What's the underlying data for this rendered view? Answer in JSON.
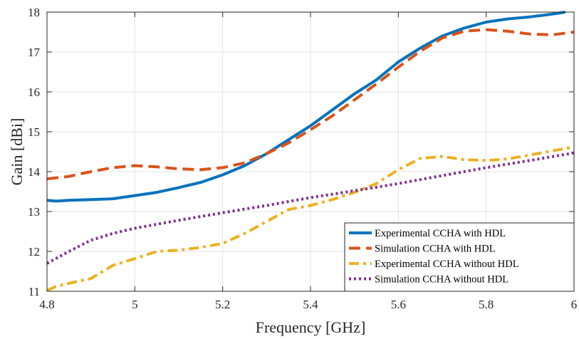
{
  "chart_data": {
    "type": "line",
    "title": "",
    "xlabel": "Frequency [GHz]",
    "ylabel": "Gain [dBi]",
    "xlim": [
      4.8,
      6.0
    ],
    "ylim": [
      11,
      18
    ],
    "x_ticks": [
      4.8,
      5,
      5.2,
      5.4,
      5.6,
      5.8,
      6
    ],
    "x_tick_labels": [
      "4.8",
      "5",
      "5.2",
      "5.4",
      "5.6",
      "5.8",
      "6"
    ],
    "y_ticks": [
      11,
      12,
      13,
      14,
      15,
      16,
      17,
      18
    ],
    "y_tick_labels": [
      "11",
      "12",
      "13",
      "14",
      "15",
      "16",
      "17",
      "18"
    ],
    "grid": true,
    "legend_position": "bottom-right",
    "series": [
      {
        "name": "Experimental CCHA with HDL",
        "style": "solid",
        "color": "#0072BD",
        "x": [
          4.8,
          4.82,
          4.85,
          4.9,
          4.95,
          5.0,
          5.05,
          5.1,
          5.15,
          5.2,
          5.25,
          5.3,
          5.35,
          5.4,
          5.45,
          5.5,
          5.55,
          5.6,
          5.65,
          5.7,
          5.75,
          5.8,
          5.85,
          5.9,
          5.95,
          5.98
        ],
        "y": [
          13.28,
          13.26,
          13.28,
          13.3,
          13.32,
          13.4,
          13.48,
          13.6,
          13.73,
          13.92,
          14.15,
          14.45,
          14.8,
          15.15,
          15.55,
          15.95,
          16.3,
          16.75,
          17.1,
          17.4,
          17.6,
          17.75,
          17.83,
          17.88,
          17.95,
          18.0
        ]
      },
      {
        "name": "Simulation CCHA with HDL",
        "style": "dashed",
        "color": "#D95319",
        "x": [
          4.8,
          4.85,
          4.9,
          4.95,
          5.0,
          5.05,
          5.1,
          5.15,
          5.2,
          5.25,
          5.3,
          5.35,
          5.4,
          5.45,
          5.5,
          5.55,
          5.6,
          5.65,
          5.7,
          5.75,
          5.8,
          5.85,
          5.9,
          5.95,
          6.0
        ],
        "y": [
          13.82,
          13.88,
          14.0,
          14.1,
          14.15,
          14.12,
          14.07,
          14.05,
          14.1,
          14.22,
          14.45,
          14.72,
          15.05,
          15.4,
          15.8,
          16.2,
          16.62,
          17.02,
          17.35,
          17.52,
          17.56,
          17.52,
          17.45,
          17.43,
          17.5
        ]
      },
      {
        "name": "Experimental CCHA without HDL",
        "style": "dashdot",
        "color": "#EDB120",
        "x": [
          4.8,
          4.82,
          4.85,
          4.9,
          4.95,
          5.0,
          5.05,
          5.1,
          5.15,
          5.2,
          5.25,
          5.3,
          5.35,
          5.4,
          5.45,
          5.5,
          5.55,
          5.6,
          5.65,
          5.7,
          5.75,
          5.8,
          5.85,
          5.9,
          5.95,
          6.0
        ],
        "y": [
          11.02,
          11.12,
          11.2,
          11.32,
          11.65,
          11.82,
          12.0,
          12.03,
          12.1,
          12.2,
          12.45,
          12.75,
          13.05,
          13.15,
          13.3,
          13.48,
          13.7,
          14.05,
          14.33,
          14.38,
          14.3,
          14.28,
          14.32,
          14.42,
          14.52,
          14.62
        ]
      },
      {
        "name": "Simulation CCHA without HDL",
        "style": "dotted",
        "color": "#7E2F8E",
        "x": [
          4.8,
          4.85,
          4.9,
          4.95,
          5.0,
          5.1,
          5.2,
          5.3,
          5.4,
          5.5,
          5.6,
          5.7,
          5.8,
          5.9,
          6.0
        ],
        "y": [
          11.7,
          12.0,
          12.28,
          12.45,
          12.58,
          12.78,
          12.97,
          13.15,
          13.35,
          13.52,
          13.7,
          13.9,
          14.1,
          14.28,
          14.47
        ]
      }
    ]
  }
}
